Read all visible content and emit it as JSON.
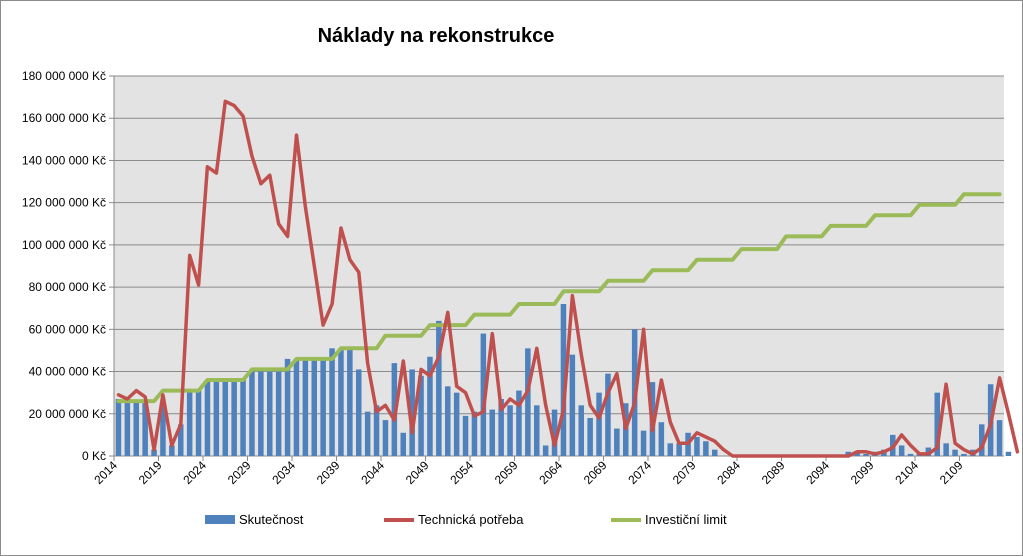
{
  "chart_data": {
    "type": "bar+line",
    "title": "Náklady na rekonstrukce",
    "xlabel": "",
    "ylabel": "",
    "ylim": [
      0,
      180000000
    ],
    "y_ticks": [
      0,
      20000000,
      40000000,
      60000000,
      80000000,
      100000000,
      120000000,
      140000000,
      160000000,
      180000000
    ],
    "y_tick_labels": [
      "0 Kč",
      "20 000 000 Kč",
      "40 000 000 Kč",
      "60 000 000 Kč",
      "80 000 000 Kč",
      "100 000 000 Kč",
      "120 000 000 Kč",
      "140 000 000 Kč",
      "160 000 000 Kč",
      "180 000 000 Kč"
    ],
    "x_start": 2014,
    "x_end": 2113,
    "x_tick_labels": [
      "2014",
      "2019",
      "2024",
      "2029",
      "2034",
      "2039",
      "2044",
      "2049",
      "2054",
      "2059",
      "2064",
      "2069",
      "2074",
      "2079",
      "2084",
      "2089",
      "2094",
      "2099",
      "2104",
      "2109"
    ],
    "grid": true,
    "legend_position": "bottom",
    "series": [
      {
        "name": "Skutečnost",
        "kind": "bar",
        "color": "#4f81bd",
        "values": [
          27000000,
          26000000,
          26000000,
          26000000,
          3000000,
          24000000,
          5000000,
          15000000,
          31000000,
          31000000,
          36000000,
          36000000,
          36000000,
          36000000,
          36000000,
          41000000,
          41000000,
          41000000,
          41000000,
          46000000,
          46000000,
          46000000,
          46000000,
          46000000,
          51000000,
          51000000,
          51000000,
          41000000,
          21000000,
          24000000,
          17000000,
          44000000,
          11000000,
          41000000,
          38000000,
          47000000,
          64000000,
          33000000,
          30000000,
          19000000,
          21000000,
          58000000,
          22000000,
          27000000,
          24000000,
          31000000,
          51000000,
          24000000,
          5000000,
          22000000,
          72000000,
          48000000,
          24000000,
          18000000,
          30000000,
          39000000,
          13000000,
          25000000,
          60000000,
          12000000,
          35000000,
          16000000,
          6000000,
          6000000,
          11000000,
          9000000,
          7000000,
          3000000,
          0,
          0,
          0,
          0,
          0,
          0,
          0,
          0,
          0,
          0,
          0,
          0,
          0,
          0,
          2000000,
          2000000,
          1000000,
          2000000,
          3000000,
          10000000,
          5000000,
          1000000,
          1000000,
          4000000,
          30000000,
          6000000,
          3000000,
          1000000,
          3000000,
          15000000,
          34000000,
          17000000,
          2000000
        ],
        "note": "bar values approximate"
      },
      {
        "name": "Technická potřeba",
        "kind": "line",
        "color": "#c0504d",
        "values": [
          29000000,
          27000000,
          31000000,
          28000000,
          3000000,
          29000000,
          5000000,
          15000000,
          95000000,
          81000000,
          137000000,
          134000000,
          168000000,
          166000000,
          161000000,
          142000000,
          129000000,
          133000000,
          110000000,
          104000000,
          152000000,
          118000000,
          90000000,
          62000000,
          72000000,
          108000000,
          93000000,
          87000000,
          44000000,
          21000000,
          24000000,
          17000000,
          45000000,
          11000000,
          41000000,
          38000000,
          47000000,
          68000000,
          33000000,
          30000000,
          19000000,
          21000000,
          58000000,
          22000000,
          27000000,
          24000000,
          31000000,
          51000000,
          24000000,
          5000000,
          22000000,
          76000000,
          48000000,
          24000000,
          18000000,
          30000000,
          39000000,
          13000000,
          25000000,
          60000000,
          12000000,
          36000000,
          16000000,
          6000000,
          6000000,
          11000000,
          9000000,
          7000000,
          3000000,
          0,
          0,
          0,
          0,
          0,
          0,
          0,
          0,
          0,
          0,
          0,
          0,
          0,
          0,
          2000000,
          2000000,
          1000000,
          2000000,
          4000000,
          10000000,
          5000000,
          1000000,
          1000000,
          4000000,
          34000000,
          6000000,
          3000000,
          1000000,
          4000000,
          15000000,
          37000000,
          20000000,
          2000000
        ]
      },
      {
        "name": "Investiční limit",
        "kind": "line",
        "color": "#9bbb59",
        "steps": [
          {
            "from": 2014,
            "to": 2018,
            "value": 26000000
          },
          {
            "from": 2019,
            "to": 2023,
            "value": 31000000
          },
          {
            "from": 2024,
            "to": 2028,
            "value": 36000000
          },
          {
            "from": 2029,
            "to": 2033,
            "value": 41000000
          },
          {
            "from": 2034,
            "to": 2038,
            "value": 46000000
          },
          {
            "from": 2039,
            "to": 2043,
            "value": 51000000
          },
          {
            "from": 2044,
            "to": 2048,
            "value": 57000000
          },
          {
            "from": 2049,
            "to": 2053,
            "value": 62000000
          },
          {
            "from": 2054,
            "to": 2058,
            "value": 67000000
          },
          {
            "from": 2059,
            "to": 2063,
            "value": 72000000
          },
          {
            "from": 2064,
            "to": 2068,
            "value": 78000000
          },
          {
            "from": 2069,
            "to": 2073,
            "value": 83000000
          },
          {
            "from": 2074,
            "to": 2078,
            "value": 88000000
          },
          {
            "from": 2079,
            "to": 2083,
            "value": 93000000
          },
          {
            "from": 2084,
            "to": 2088,
            "value": 98000000
          },
          {
            "from": 2089,
            "to": 2093,
            "value": 104000000
          },
          {
            "from": 2094,
            "to": 2098,
            "value": 109000000
          },
          {
            "from": 2099,
            "to": 2103,
            "value": 114000000
          },
          {
            "from": 2104,
            "to": 2108,
            "value": 119000000
          },
          {
            "from": 2109,
            "to": 2113,
            "value": 124000000
          }
        ]
      }
    ]
  }
}
